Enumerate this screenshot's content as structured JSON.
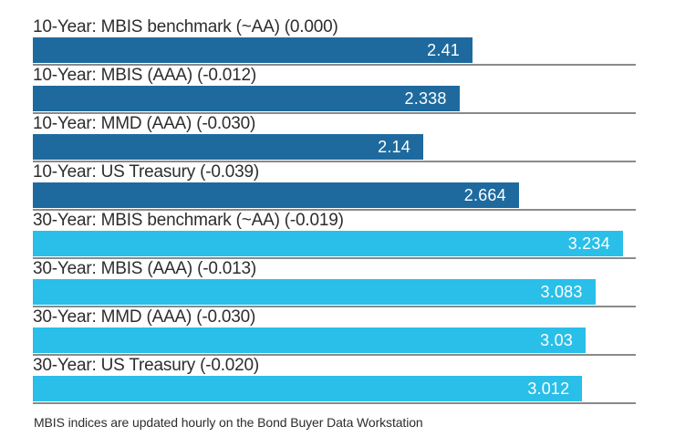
{
  "chart_data": {
    "type": "bar",
    "orientation": "horizontal",
    "title": "",
    "xlabel": "",
    "ylabel": "",
    "xlim": [
      0,
      3.305
    ],
    "grid": "off",
    "legend": "none",
    "value_label_position": "inside-right",
    "series_colors": {
      "ten_year": "#1e6a9e",
      "thirty_year": "#29bfe8"
    },
    "separator_color": "#8a8a8a",
    "bars": [
      {
        "label": "10-Year: MBIS benchmark (~AA) (0.000)",
        "value": 2.41,
        "display": "2.41",
        "group": "ten_year"
      },
      {
        "label": "10-Year: MBIS (AAA) (-0.012)",
        "value": 2.338,
        "display": "2.338",
        "group": "ten_year"
      },
      {
        "label": "10-Year: MMD (AAA) (-0.030)",
        "value": 2.14,
        "display": "2.14",
        "group": "ten_year"
      },
      {
        "label": "10-Year: US Treasury (-0.039)",
        "value": 2.664,
        "display": "2.664",
        "group": "ten_year"
      },
      {
        "label": "30-Year: MBIS benchmark (~AA) (-0.019)",
        "value": 3.234,
        "display": "3.234",
        "group": "thirty_year"
      },
      {
        "label": "30-Year: MBIS (AAA) (-0.013)",
        "value": 3.083,
        "display": "3.083",
        "group": "thirty_year"
      },
      {
        "label": "30-Year: MMD (AAA) (-0.030)",
        "value": 3.03,
        "display": "3.03",
        "group": "thirty_year"
      },
      {
        "label": "30-Year: US Treasury (-0.020)",
        "value": 3.012,
        "display": "3.012",
        "group": "thirty_year"
      }
    ],
    "footnote": "MBIS indices are updated hourly on the Bond Buyer Data Workstation"
  }
}
